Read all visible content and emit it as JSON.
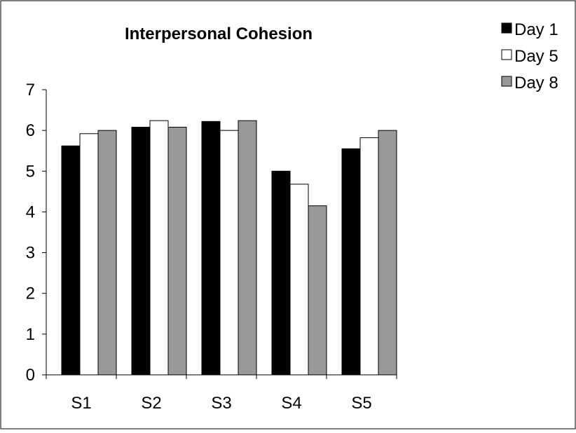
{
  "chart_data": {
    "type": "bar",
    "title": "Interpersonal Cohesion",
    "xlabel": "",
    "ylabel": "",
    "categories": [
      "S1",
      "S2",
      "S3",
      "S4",
      "S5"
    ],
    "series": [
      {
        "name": "Day 1",
        "values": [
          5.62,
          6.08,
          6.22,
          5.0,
          5.55
        ]
      },
      {
        "name": "Day 5",
        "values": [
          5.92,
          6.24,
          6.0,
          4.68,
          5.82
        ]
      },
      {
        "name": "Day 8",
        "values": [
          6.0,
          6.08,
          6.24,
          4.15,
          6.0
        ]
      }
    ],
    "ylim": [
      0,
      7
    ],
    "yticks": [
      "0",
      "1",
      "2",
      "3",
      "4",
      "5",
      "6",
      "7"
    ],
    "grid": false,
    "legend_position": "top-right",
    "colors": {
      "Day 1": "#000000",
      "Day 5": "#ffffff",
      "Day 8": "#999999",
      "bar_stroke": "#000000",
      "axis": "#000000",
      "frame": "#000000",
      "background": "#ffffff"
    }
  }
}
